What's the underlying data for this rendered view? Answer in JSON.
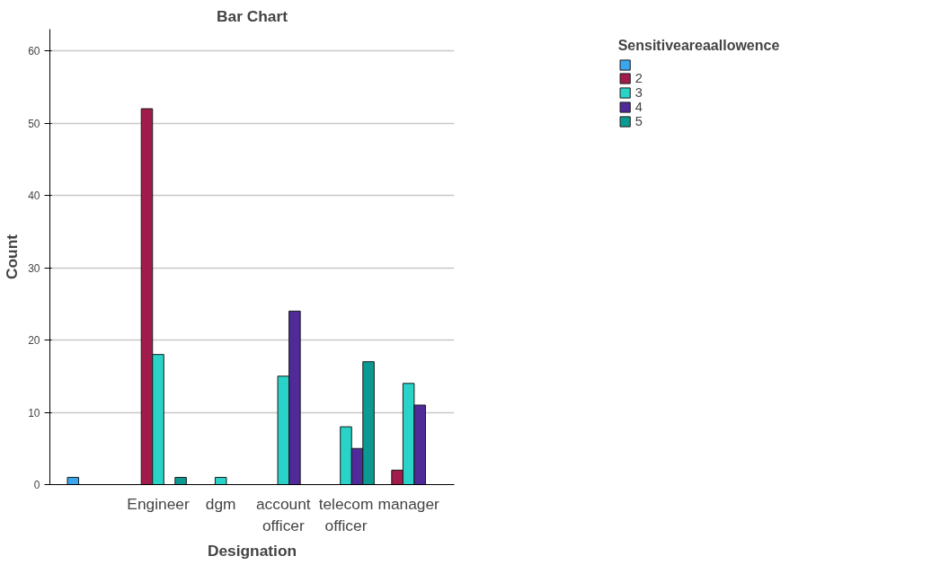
{
  "chart_data": {
    "type": "bar",
    "title": "Bar Chart",
    "xlabel": "Designation",
    "ylabel": "Count",
    "legend_title": "Sensitiveareaallowence",
    "categories": [
      null,
      "Engineer",
      "dgm",
      "account officer",
      "telecom officer",
      "manager"
    ],
    "series": [
      {
        "color": "#3aa6f0",
        "values": [
          1,
          null,
          null,
          null,
          null,
          null
        ]
      },
      {
        "name": "2",
        "color": "#a11c4c",
        "values": [
          null,
          52,
          null,
          null,
          null,
          2
        ]
      },
      {
        "name": "3",
        "color": "#29d3c8",
        "values": [
          null,
          18,
          1,
          15,
          8,
          14
        ]
      },
      {
        "name": "4",
        "color": "#4f2a98",
        "values": [
          null,
          null,
          null,
          24,
          5,
          11
        ]
      },
      {
        "name": "5",
        "color": "#0b9a92",
        "values": [
          null,
          1,
          null,
          null,
          17,
          null
        ]
      }
    ],
    "ylim": [
      0,
      63
    ],
    "yticks": [
      0,
      10,
      20,
      30,
      40,
      50,
      60
    ],
    "grid": "y",
    "legend": "top right"
  }
}
